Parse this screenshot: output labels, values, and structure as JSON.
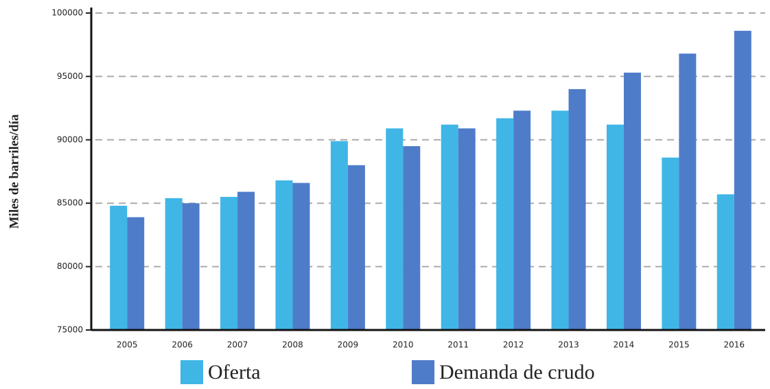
{
  "chart_data": {
    "type": "bar",
    "y_label": "Miles de barriles/día",
    "categories": [
      "2005",
      "2006",
      "2007",
      "2008",
      "2009",
      "2010",
      "2011",
      "2012",
      "2013",
      "2014",
      "2015",
      "2016"
    ],
    "series": [
      {
        "name": "Oferta",
        "color": "#3fb6e6",
        "values": [
          84800,
          85400,
          85500,
          86800,
          89900,
          90900,
          91200,
          91700,
          92300,
          91200,
          88600,
          85700
        ]
      },
      {
        "name": "Demanda de crudo",
        "color": "#4f7cc9",
        "values": [
          83900,
          85000,
          85900,
          86600,
          88000,
          89500,
          90900,
          92300,
          94000,
          95300,
          96800,
          98600
        ]
      }
    ],
    "ylim": [
      75000,
      100000
    ],
    "yticks": [
      75000,
      80000,
      85000,
      90000,
      95000,
      100000
    ],
    "grid": true,
    "legend": "bottom"
  }
}
